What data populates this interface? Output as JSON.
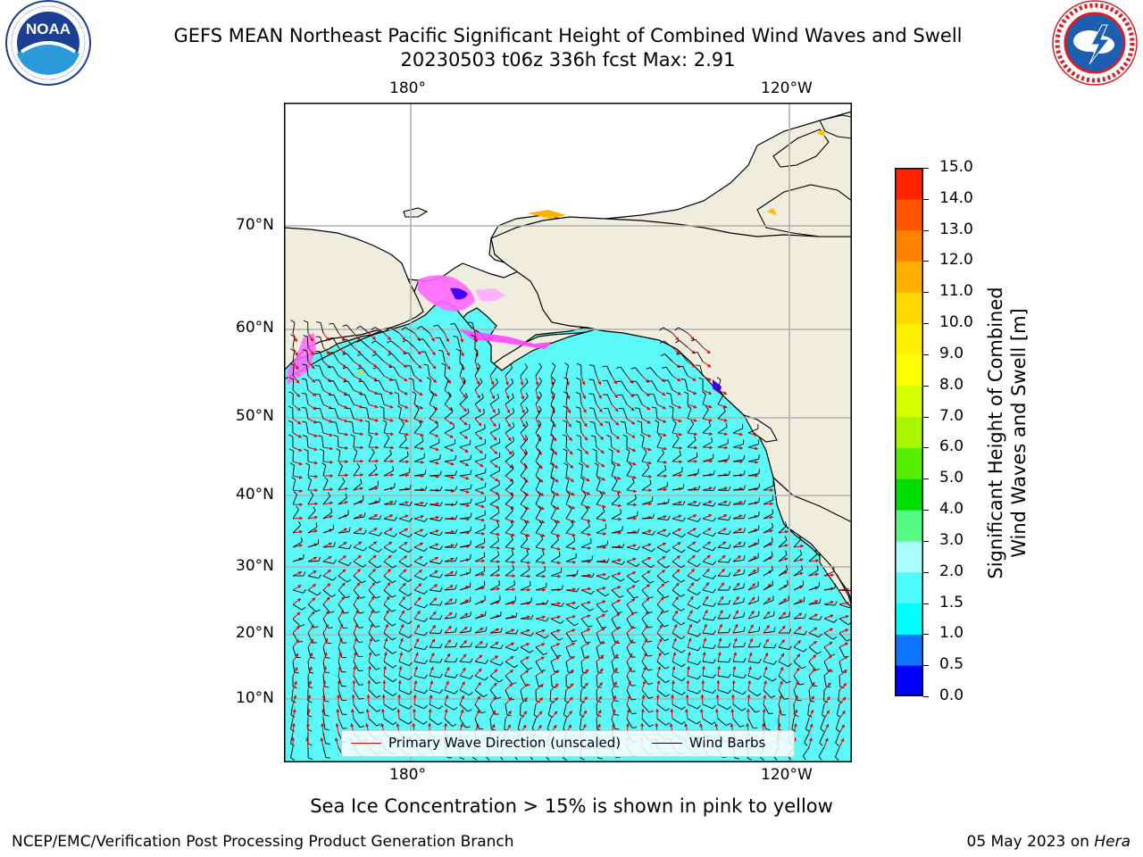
{
  "header": {
    "title_line1": "GEFS MEAN Northeast Pacific Significant Height of Combined Wind Waves and Swell",
    "title_line2": "20230503 t06z 336h fcst   Max: 2.91"
  },
  "logos": {
    "noaa_text": "NOAA",
    "noaa_ring": "NATIONAL OCEANIC AND ATMOSPHERIC ADMINISTRATION · U.S. DEPARTMENT OF COMMERCE",
    "nws_ring": "NATIONAL WEATHER SERVICE"
  },
  "map": {
    "lon_labels": [
      "180°",
      "120°W"
    ],
    "lat_labels": [
      "70°N",
      "60°N",
      "50°N",
      "40°N",
      "30°N",
      "20°N",
      "10°N"
    ],
    "colors": {
      "land": "#efedde",
      "ocean_low": "#5cf7f7",
      "ocean_high": "#b4fafa",
      "coast": "#000000",
      "wave_arrow": "#e00000",
      "wind_barb": "#000000",
      "grid": "#b0b0b0"
    },
    "legend": {
      "wave_label": "Primary Wave Direction (unscaled)",
      "wind_label": "Wind Barbs"
    }
  },
  "colorbar": {
    "label_line1": "Significant Height of Combined",
    "label_line2": "Wind Waves and Swell [m]",
    "ticks": [
      "0.0",
      "0.5",
      "1.0",
      "1.5",
      "2.0",
      "3.0",
      "4.0",
      "5.0",
      "6.0",
      "7.0",
      "8.0",
      "9.0",
      "10.0",
      "11.0",
      "12.0",
      "13.0",
      "14.0",
      "15.0"
    ],
    "colors": [
      "#0000ff",
      "#0f77ff",
      "#00ffff",
      "#4ffcfc",
      "#aafcfc",
      "#55fb83",
      "#00dd00",
      "#55ee00",
      "#aaf500",
      "#d4ff00",
      "#ffff00",
      "#fff000",
      "#ffda00",
      "#ffb000",
      "#ff8200",
      "#ff5500",
      "#ff2400"
    ]
  },
  "footer": {
    "ice_note": "Sea Ice Concentration > 15% is shown in pink to yellow",
    "branch": "NCEP/EMC/Verification Post Processing Product Generation Branch",
    "date": "05 May 2023 on",
    "host": "Hera"
  }
}
